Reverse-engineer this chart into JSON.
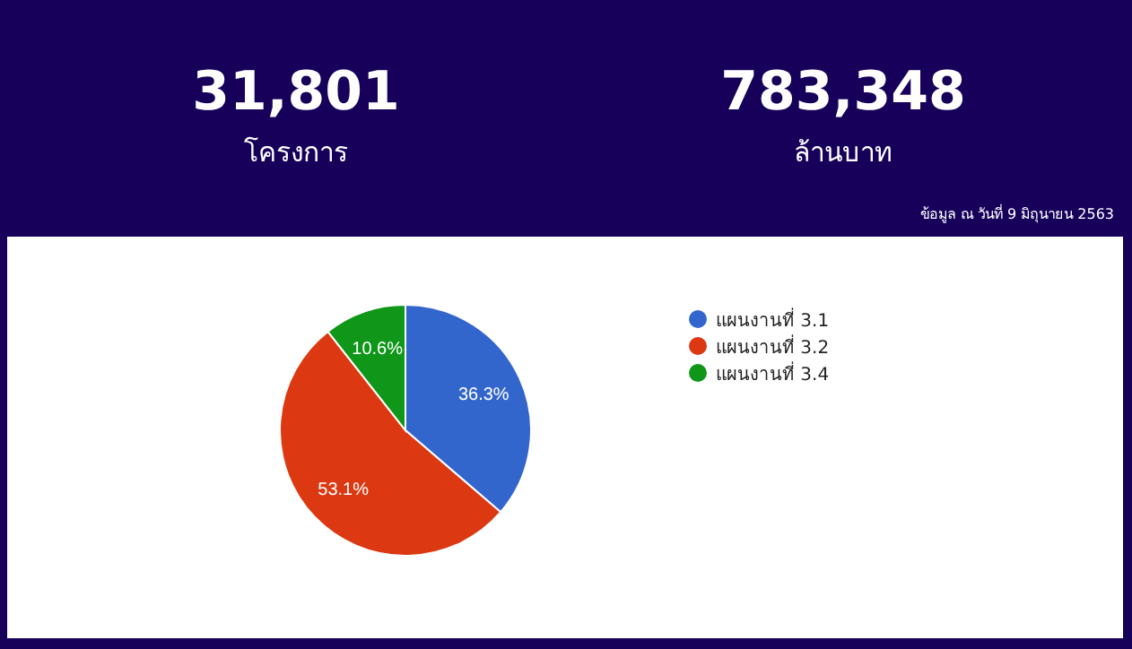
{
  "chart_data": {
    "type": "pie",
    "categories": [
      "แผนงานที่ 3.1",
      "แผนงานที่ 3.2",
      "แผนงานที่ 3.4"
    ],
    "values": [
      36.3,
      53.1,
      10.6
    ],
    "colors": [
      "#3366cc",
      "#dc3912",
      "#109618"
    ],
    "value_labels": [
      "36.3%",
      "53.1%",
      "10.6%"
    ],
    "legend": "top right",
    "annotations": [
      "31,801",
      "โครงการ",
      "783,348",
      "ล้านบาท",
      "ข้อมูล ณ วันที่ 9 มิถุนายน 2563"
    ]
  }
}
